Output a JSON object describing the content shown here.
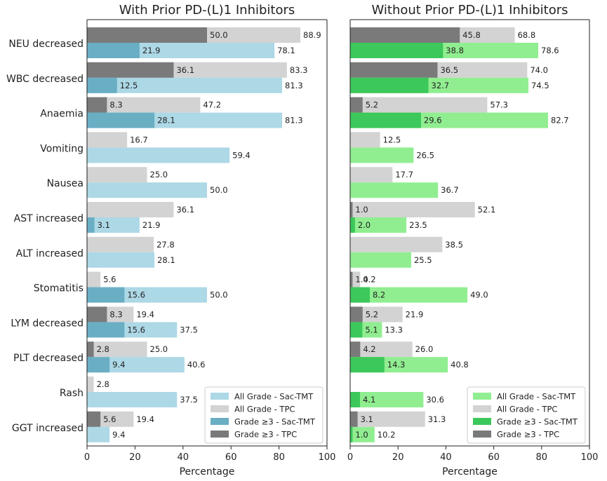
{
  "chart_data": {
    "type": "bar",
    "orientation": "horizontal",
    "categories": [
      "NEU decreased",
      "WBC decreased",
      "Anaemia",
      "Vomiting",
      "Nausea",
      "AST increased",
      "ALT increased",
      "Stomatitis",
      "LYM decreased",
      "PLT decreased",
      "Rash",
      "GGT increased"
    ],
    "panels": [
      {
        "title": "With Prior PD-(L)1 Inhibitors",
        "xlabel": "Percentage",
        "xlim": [
          0,
          100
        ],
        "xticks": [
          0,
          20,
          40,
          60,
          80,
          100
        ],
        "colors": {
          "all_sac": "#add8e6",
          "all_tpc": "#d3d3d3",
          "g3_sac": "#6aaec4",
          "g3_tpc": "#7a7a7a"
        },
        "series": [
          {
            "name": "All Grade - Sac-TMT",
            "key": "all_sac",
            "values": [
              78.1,
              81.3,
              81.3,
              59.4,
              50.0,
              21.9,
              28.1,
              50.0,
              37.5,
              40.6,
              37.5,
              9.4
            ],
            "labels": [
              "78.1",
              "81.3",
              "81.3",
              "59.4",
              "50.0",
              "21.9",
              "28.1",
              "50.0",
              "37.5",
              "40.6",
              "37.5",
              "9.4"
            ]
          },
          {
            "name": "All Grade - TPC",
            "key": "all_tpc",
            "values": [
              88.9,
              83.3,
              47.2,
              16.7,
              25.0,
              36.1,
              27.8,
              5.6,
              19.4,
              25.0,
              2.8,
              19.4
            ],
            "labels": [
              "88.9",
              "83.3",
              "47.2",
              "16.7",
              "25.0",
              "36.1",
              "27.8",
              "5.6",
              "19.4",
              "25.0",
              "2.8",
              "19.4"
            ]
          },
          {
            "name": "Grade ≥3 - Sac-TMT",
            "key": "g3_sac",
            "values": [
              21.9,
              12.5,
              28.1,
              null,
              null,
              3.1,
              null,
              15.6,
              15.6,
              9.4,
              null,
              null
            ],
            "labels": [
              "21.9",
              "12.5",
              "28.1",
              null,
              null,
              "3.1",
              null,
              "15.6",
              "15.6",
              "9.4",
              null,
              null
            ]
          },
          {
            "name": "Grade ≥3 - TPC",
            "key": "g3_tpc",
            "values": [
              50.0,
              36.1,
              8.3,
              null,
              null,
              null,
              null,
              null,
              8.3,
              2.8,
              null,
              5.6
            ],
            "labels": [
              "50.0",
              "36.1",
              "8.3",
              null,
              null,
              null,
              null,
              null,
              "8.3",
              "2.8",
              null,
              "5.6"
            ]
          }
        ],
        "legend": [
          "All Grade - Sac-TMT",
          "All Grade - TPC",
          "Grade ≥3 - Sac-TMT",
          "Grade ≥3 - TPC"
        ],
        "legend_position": "lower-right"
      },
      {
        "title": "Without Prior PD-(L)1 Inhibitors",
        "xlabel": "Percentage",
        "xlim": [
          0,
          100
        ],
        "xticks": [
          0,
          20,
          40,
          60,
          80,
          100
        ],
        "colors": {
          "all_sac": "#90ee90",
          "all_tpc": "#d3d3d3",
          "g3_sac": "#3cc85a",
          "g3_tpc": "#7a7a7a"
        },
        "series": [
          {
            "name": "All Grade - Sac-TMT",
            "key": "all_sac",
            "values": [
              78.6,
              74.5,
              82.7,
              26.5,
              36.7,
              23.5,
              25.5,
              49.0,
              13.3,
              40.8,
              30.6,
              10.2
            ],
            "labels": [
              "78.6",
              "74.5",
              "82.7",
              "26.5",
              "36.7",
              "23.5",
              "25.5",
              "49.0",
              "13.3",
              "40.8",
              "30.6",
              "10.2"
            ]
          },
          {
            "name": "All Grade - TPC",
            "key": "all_tpc",
            "values": [
              68.8,
              74.0,
              57.3,
              12.5,
              17.7,
              52.1,
              38.5,
              4.2,
              21.9,
              26.0,
              null,
              31.3
            ],
            "labels": [
              "68.8",
              "74.0",
              "57.3",
              "12.5",
              "17.7",
              "52.1",
              "38.5",
              "4.2",
              "21.9",
              "26.0",
              null,
              "31.3"
            ]
          },
          {
            "name": "Grade ≥3 - Sac-TMT",
            "key": "g3_sac",
            "values": [
              38.8,
              32.7,
              29.6,
              null,
              null,
              2.0,
              null,
              8.2,
              5.1,
              14.3,
              4.1,
              1.0
            ],
            "labels": [
              "38.8",
              "32.7",
              "29.6",
              null,
              null,
              "2.0",
              null,
              "8.2",
              "5.1",
              "14.3",
              "4.1",
              "1.0"
            ]
          },
          {
            "name": "Grade ≥3 - TPC",
            "key": "g3_tpc",
            "values": [
              45.8,
              36.5,
              5.2,
              null,
              null,
              1.0,
              null,
              1.0,
              5.2,
              4.2,
              null,
              3.1
            ],
            "labels": [
              "45.8",
              "36.5",
              "5.2",
              null,
              null,
              "1.0",
              null,
              "1.0",
              "5.2",
              "4.2",
              null,
              "3.1"
            ]
          }
        ],
        "legend": [
          "All Grade - Sac-TMT",
          "All Grade - TPC",
          "Grade ≥3 - Sac-TMT",
          "Grade ≥3 - TPC"
        ],
        "legend_position": "lower-right"
      }
    ]
  }
}
